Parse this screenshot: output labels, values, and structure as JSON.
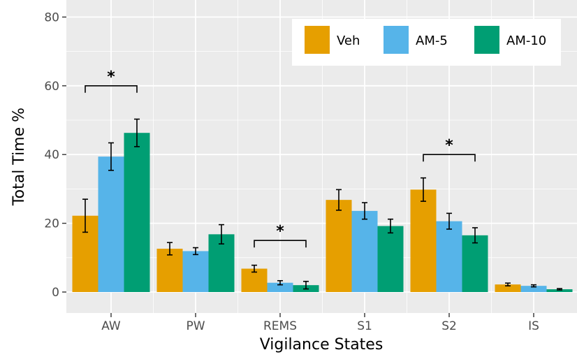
{
  "chart_data": {
    "type": "bar",
    "title": "",
    "xlabel": "Vigilance States",
    "ylabel": "Total Time %",
    "ylim": [
      0,
      80
    ],
    "yticks": [
      0,
      20,
      40,
      60,
      80
    ],
    "grid": true,
    "legend_position": "top-right",
    "categories": [
      "AW",
      "PW",
      "REMS",
      "S1",
      "S2",
      "IS"
    ],
    "series": [
      {
        "name": "Veh",
        "color": "#E69F00",
        "values": [
          22.2,
          12.6,
          6.8,
          26.8,
          29.8,
          2.2
        ],
        "errors": [
          4.8,
          1.8,
          1.0,
          3.0,
          3.4,
          0.4
        ]
      },
      {
        "name": "AM-5",
        "color": "#56B4E9",
        "values": [
          39.4,
          11.9,
          2.7,
          23.6,
          20.6,
          1.8
        ],
        "errors": [
          4.0,
          1.0,
          0.6,
          2.4,
          2.3,
          0.3
        ]
      },
      {
        "name": "AM-10",
        "color": "#009E73",
        "values": [
          46.3,
          16.8,
          2.0,
          19.2,
          16.5,
          0.8
        ],
        "errors": [
          4.0,
          2.8,
          1.1,
          2.0,
          2.2,
          0.2
        ]
      }
    ],
    "significance": [
      {
        "category_index": 0,
        "label": "*",
        "value": 60
      },
      {
        "category_index": 2,
        "label": "*",
        "value": 15
      },
      {
        "category_index": 4,
        "label": "*",
        "value": 40
      }
    ]
  }
}
